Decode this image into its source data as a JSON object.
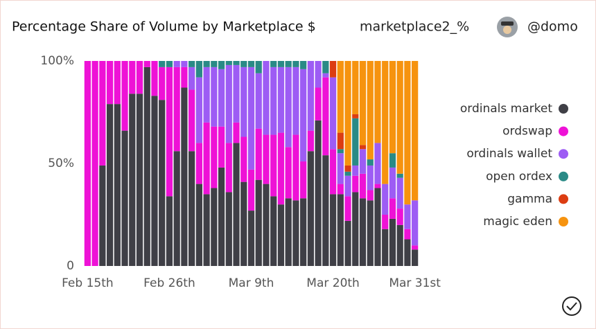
{
  "header": {
    "title": "Percentage Share of Volume by Marketplace $",
    "query": "marketplace2_%",
    "user": "@domo"
  },
  "chart_data": {
    "type": "stacked_bar",
    "categories": [
      "Feb 15th",
      null,
      null,
      null,
      null,
      null,
      null,
      null,
      null,
      null,
      null,
      "Feb 26th",
      null,
      null,
      null,
      null,
      null,
      null,
      null,
      null,
      null,
      null,
      "Mar 9th",
      null,
      null,
      null,
      null,
      null,
      null,
      null,
      null,
      null,
      null,
      "Mar 20th",
      null,
      null,
      null,
      null,
      null,
      null,
      null,
      null,
      null,
      null,
      "Mar 31st"
    ],
    "ylim": [
      0,
      100
    ],
    "yticks": [
      0,
      {
        "value": 50,
        "label": "50%"
      },
      {
        "value": 100,
        "label": "100%"
      }
    ],
    "series": [
      {
        "name": "ordinals market",
        "color": "#3f3f46",
        "values": [
          0,
          0,
          49,
          79,
          79,
          66,
          84,
          84,
          97,
          83,
          81,
          34,
          56,
          87,
          56,
          40,
          35,
          38,
          48,
          36,
          60,
          41,
          27,
          42,
          40,
          34,
          30,
          33,
          32,
          33,
          56,
          71,
          54,
          35,
          35,
          22,
          36,
          33,
          32,
          38,
          18,
          23,
          20,
          13,
          8
        ]
      },
      {
        "name": "ordswap",
        "color": "#ee12d6",
        "values": [
          100,
          100,
          51,
          21,
          21,
          34,
          16,
          16,
          3,
          17,
          16,
          63,
          41,
          10,
          30,
          20,
          35,
          30,
          20,
          24,
          10,
          22,
          20,
          25,
          24,
          30,
          35,
          25,
          32,
          18,
          10,
          16,
          38,
          22,
          5,
          12,
          8,
          12,
          5,
          2,
          7,
          10,
          8,
          5,
          2
        ]
      },
      {
        "name": "ordinals wallet",
        "color": "#9d5cf4",
        "values": [
          0,
          0,
          0,
          0,
          0,
          0,
          0,
          0,
          0,
          0,
          0,
          0,
          3,
          3,
          11,
          32,
          27,
          29,
          28,
          38,
          28,
          34,
          50,
          27,
          36,
          33,
          32,
          39,
          33,
          45,
          34,
          13,
          2,
          35,
          15,
          10,
          5,
          12,
          12,
          20,
          15,
          15,
          15,
          12,
          22
        ]
      },
      {
        "name": "open ordex",
        "color": "#2a8a86",
        "values": [
          0,
          0,
          0,
          0,
          0,
          0,
          0,
          0,
          0,
          0,
          3,
          3,
          0,
          0,
          3,
          8,
          3,
          3,
          4,
          2,
          2,
          3,
          3,
          6,
          0,
          3,
          3,
          3,
          3,
          4,
          0,
          0,
          6,
          0,
          2,
          2,
          23,
          0,
          3,
          0,
          0,
          7,
          2,
          0,
          0
        ]
      },
      {
        "name": "gamma",
        "color": "#dc3d12",
        "values": [
          0,
          0,
          0,
          0,
          0,
          0,
          0,
          0,
          0,
          0,
          0,
          0,
          0,
          0,
          0,
          0,
          0,
          0,
          0,
          0,
          0,
          0,
          0,
          0,
          0,
          0,
          0,
          0,
          0,
          0,
          0,
          0,
          0,
          8,
          8,
          3,
          2,
          2,
          0,
          0,
          0,
          0,
          0,
          0,
          0
        ]
      },
      {
        "name": "magic eden",
        "color": "#f6930f",
        "values": [
          0,
          0,
          0,
          0,
          0,
          0,
          0,
          0,
          0,
          0,
          0,
          0,
          0,
          0,
          0,
          0,
          0,
          0,
          0,
          0,
          0,
          0,
          0,
          0,
          0,
          0,
          0,
          0,
          0,
          0,
          0,
          0,
          0,
          0,
          35,
          51,
          26,
          41,
          48,
          40,
          60,
          45,
          55,
          70,
          68
        ]
      }
    ]
  }
}
